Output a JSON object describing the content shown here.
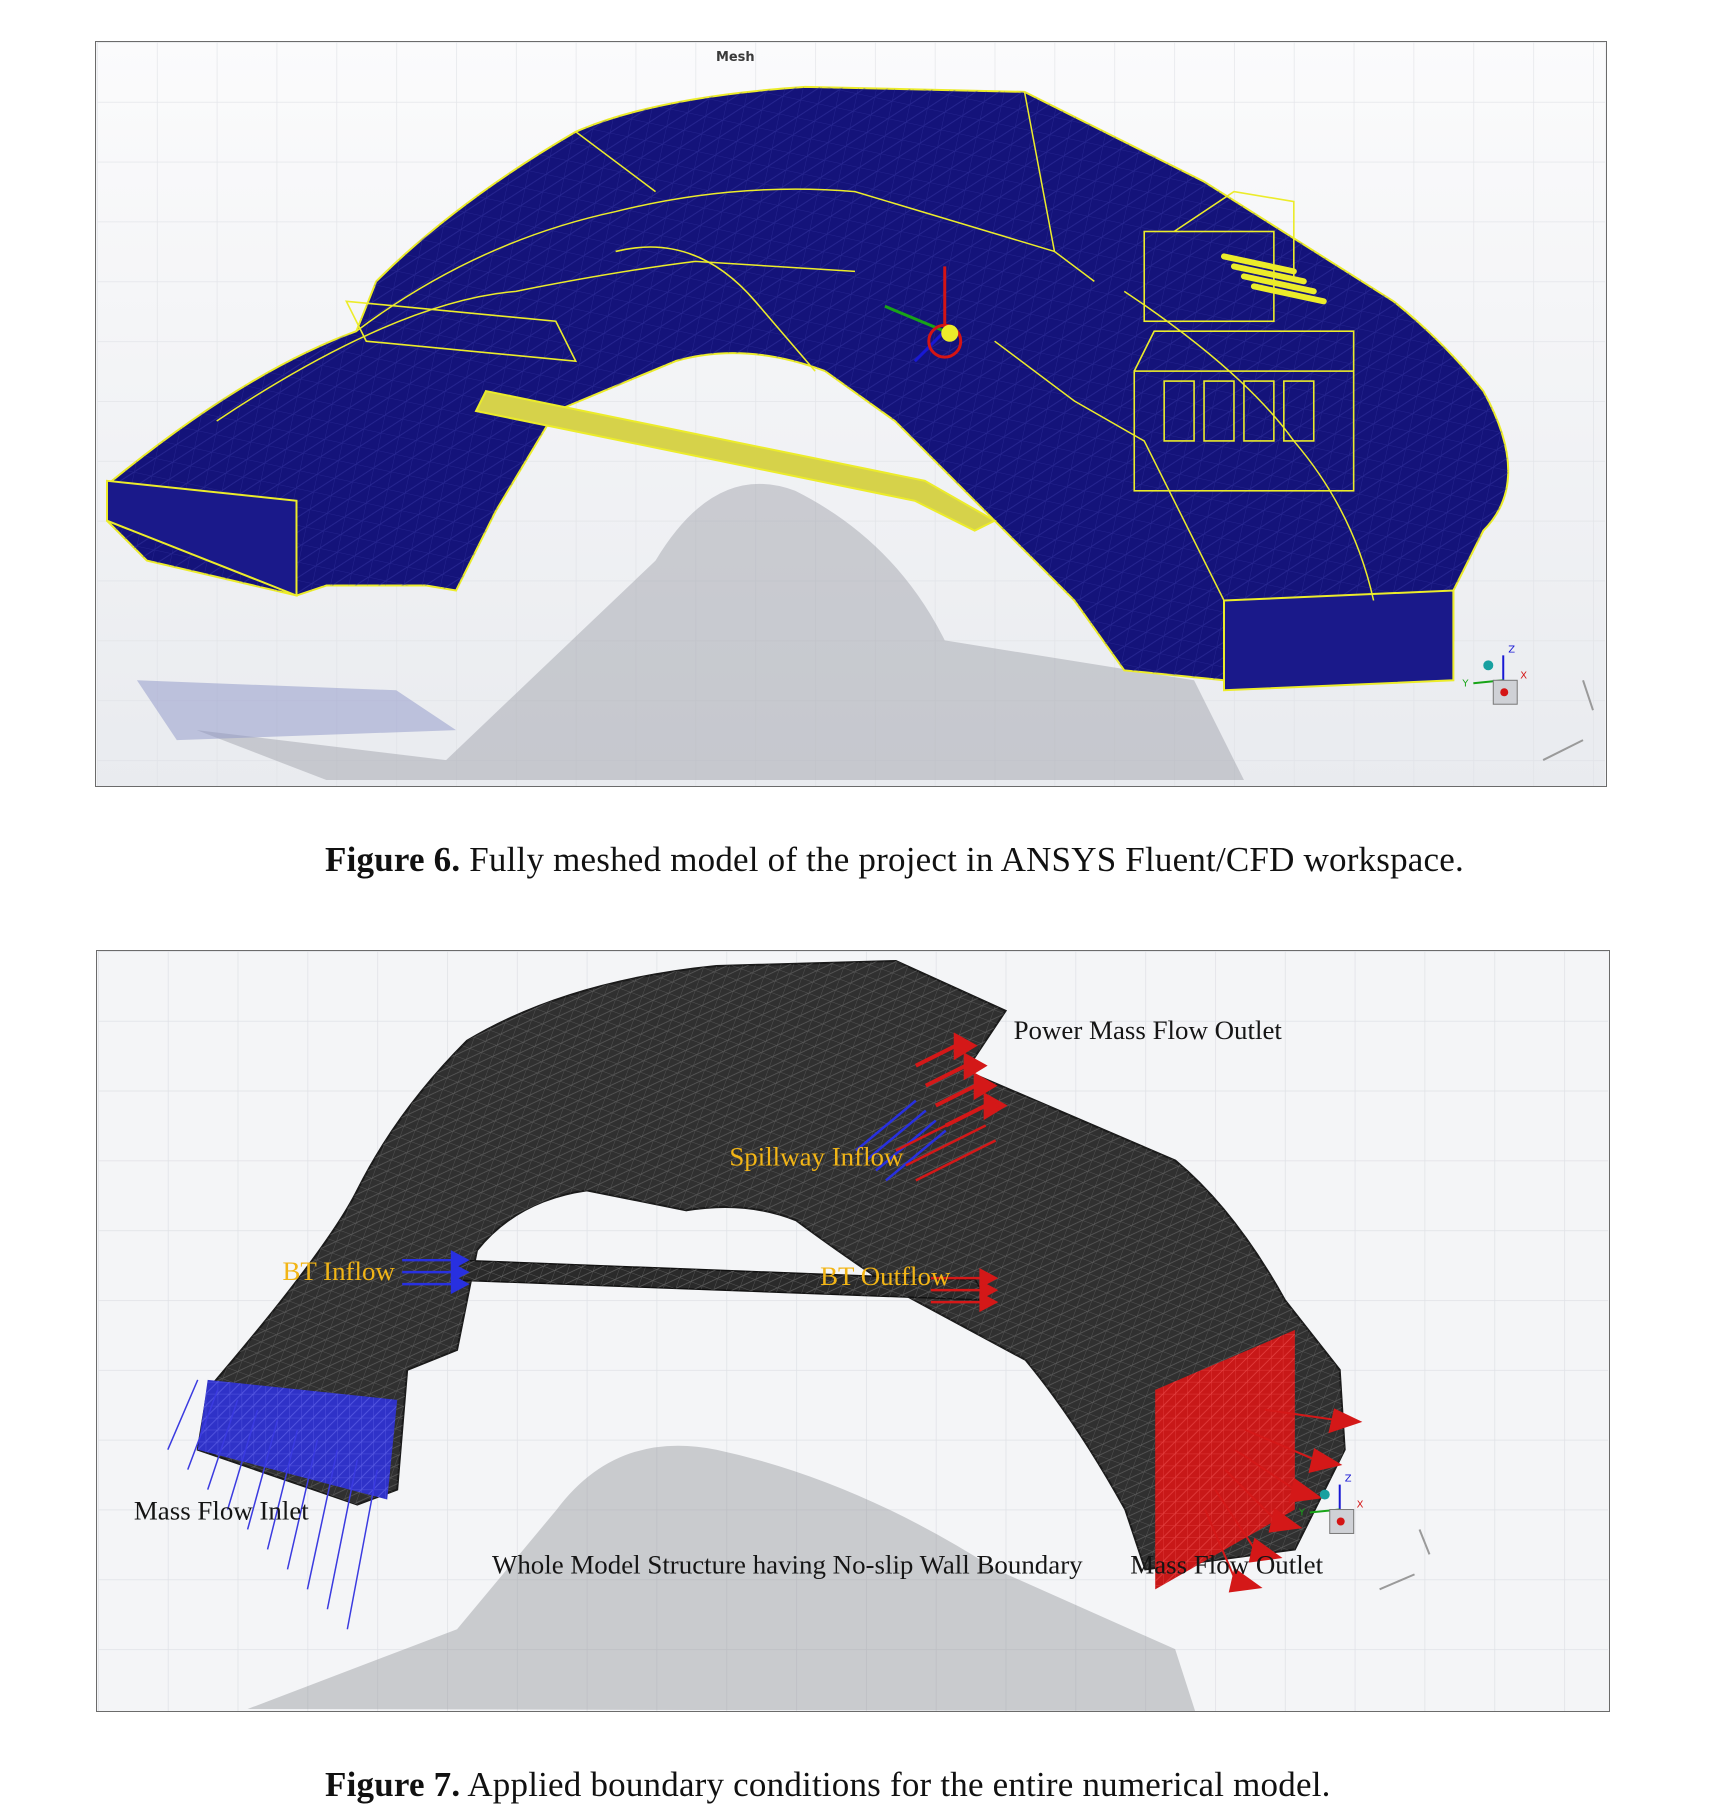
{
  "figure6": {
    "viewport_title": "Mesh",
    "caption_label": "Figure 6.",
    "caption_text": " Fully meshed model of the project in ANSYS Fluent/CFD workspace.",
    "colors": {
      "mesh_fill": "#14137a",
      "edge_lines": "#ecec2a",
      "background": "#f3f4f6"
    }
  },
  "figure7": {
    "caption_label": "Figure 7.",
    "caption_text": " Applied boundary conditions for the entire numerical model.",
    "labels": {
      "power_outlet": "Power Mass Flow Outlet",
      "spillway_inflow": "Spillway Inflow",
      "bt_inflow": "BT Inflow",
      "bt_outflow": "BT Outflow",
      "mass_flow_inlet": "Mass Flow Inlet",
      "wall_boundary": "Whole Model Structure having No-slip Wall Boundary",
      "mass_flow_outlet": "Mass Flow Outlet"
    },
    "colors": {
      "mesh_fill": "#3a3a3a",
      "inlet": "#2f32c8",
      "outlet": "#c81818",
      "label_yellow": "#f2b516"
    }
  },
  "axis_triad": {
    "x": "X",
    "y": "Y",
    "z": "Z"
  }
}
